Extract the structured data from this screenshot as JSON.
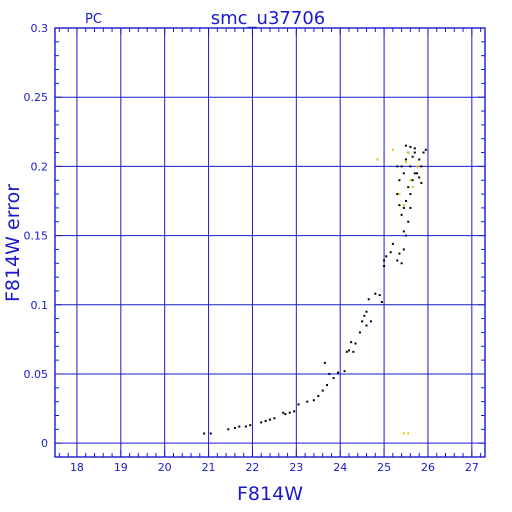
{
  "chart_data": {
    "type": "scatter",
    "title": "smc_u37706",
    "subtitle": "PC",
    "xlabel": "F814W",
    "ylabel": "F814W error",
    "xlim": [
      17.5,
      27.3
    ],
    "ylim": [
      -0.01,
      0.3
    ],
    "grid": true,
    "x_ticks": [
      "18",
      "19",
      "20",
      "21",
      "22",
      "23",
      "24",
      "25",
      "26",
      "27"
    ],
    "y_ticks": [
      "0",
      "0.05",
      "0.1",
      "0.15",
      "0.2",
      "0.25",
      "0.3"
    ],
    "colors": {
      "axes": "#1a1acc",
      "points": "#000000",
      "highlight": "#e6c200",
      "background": "#ffffff"
    },
    "series": [
      {
        "color": "#000000",
        "points": [
          [
            20.9,
            0.007
          ],
          [
            21.05,
            0.007
          ],
          [
            21.45,
            0.01
          ],
          [
            21.6,
            0.011
          ],
          [
            21.7,
            0.012
          ],
          [
            21.85,
            0.012
          ],
          [
            21.95,
            0.013
          ],
          [
            22.2,
            0.015
          ],
          [
            22.3,
            0.016
          ],
          [
            22.4,
            0.017
          ],
          [
            22.5,
            0.018
          ],
          [
            22.7,
            0.022
          ],
          [
            22.75,
            0.021
          ],
          [
            22.85,
            0.022
          ],
          [
            22.95,
            0.023
          ],
          [
            23.05,
            0.028
          ],
          [
            23.25,
            0.03
          ],
          [
            23.4,
            0.031
          ],
          [
            23.5,
            0.034
          ],
          [
            23.6,
            0.038
          ],
          [
            23.7,
            0.042
          ],
          [
            23.65,
            0.058
          ],
          [
            23.75,
            0.05
          ],
          [
            23.85,
            0.047
          ],
          [
            23.95,
            0.051
          ],
          [
            24.1,
            0.052
          ],
          [
            24.15,
            0.066
          ],
          [
            24.2,
            0.067
          ],
          [
            24.3,
            0.066
          ],
          [
            24.25,
            0.073
          ],
          [
            24.35,
            0.072
          ],
          [
            24.45,
            0.08
          ],
          [
            24.5,
            0.088
          ],
          [
            24.55,
            0.092
          ],
          [
            24.6,
            0.095
          ],
          [
            24.6,
            0.085
          ],
          [
            24.7,
            0.088
          ],
          [
            24.65,
            0.104
          ],
          [
            24.8,
            0.108
          ],
          [
            24.9,
            0.107
          ],
          [
            24.95,
            0.102
          ],
          [
            25.0,
            0.132
          ],
          [
            25.05,
            0.135
          ],
          [
            25.0,
            0.128
          ],
          [
            25.15,
            0.138
          ],
          [
            25.2,
            0.144
          ],
          [
            25.3,
            0.132
          ],
          [
            25.35,
            0.137
          ],
          [
            25.4,
            0.13
          ],
          [
            25.45,
            0.14
          ],
          [
            25.5,
            0.15
          ],
          [
            25.55,
            0.16
          ],
          [
            25.45,
            0.153
          ],
          [
            25.6,
            0.17
          ],
          [
            25.3,
            0.18
          ],
          [
            25.35,
            0.19
          ],
          [
            25.4,
            0.2
          ],
          [
            25.45,
            0.195
          ],
          [
            25.5,
            0.205
          ],
          [
            25.55,
            0.21
          ],
          [
            25.6,
            0.2
          ],
          [
            25.65,
            0.19
          ],
          [
            25.7,
            0.195
          ],
          [
            25.75,
            0.2
          ],
          [
            25.8,
            0.205
          ],
          [
            25.85,
            0.2
          ],
          [
            25.9,
            0.21
          ],
          [
            25.95,
            0.212
          ],
          [
            25.5,
            0.215
          ],
          [
            25.6,
            0.214
          ],
          [
            25.7,
            0.213
          ],
          [
            25.55,
            0.185
          ],
          [
            25.6,
            0.18
          ],
          [
            25.5,
            0.175
          ],
          [
            25.45,
            0.17
          ],
          [
            25.4,
            0.165
          ],
          [
            25.35,
            0.172
          ],
          [
            25.3,
            0.2
          ],
          [
            25.65,
            0.207
          ],
          [
            25.7,
            0.21
          ],
          [
            25.75,
            0.195
          ],
          [
            25.8,
            0.192
          ],
          [
            25.85,
            0.188
          ]
        ]
      },
      {
        "color": "#e6c200",
        "points": [
          [
            24.85,
            0.205
          ],
          [
            25.2,
            0.212
          ],
          [
            25.35,
            0.18
          ],
          [
            25.45,
            0.172
          ],
          [
            25.55,
            0.21
          ],
          [
            25.6,
            0.19
          ],
          [
            25.65,
            0.185
          ],
          [
            25.75,
            0.2
          ],
          [
            25.5,
            0.203
          ],
          [
            25.45,
            0.007
          ],
          [
            25.55,
            0.007
          ]
        ]
      }
    ]
  }
}
